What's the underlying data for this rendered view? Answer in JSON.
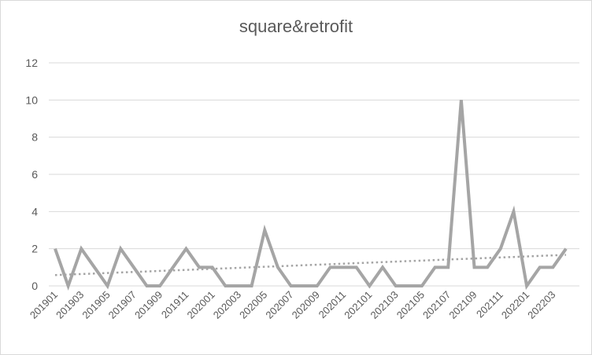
{
  "chart_data": {
    "type": "line",
    "title": "square&retrofit",
    "xlabel": "",
    "ylabel": "",
    "ylim": [
      0,
      12
    ],
    "yticks": [
      0,
      2,
      4,
      6,
      8,
      10,
      12
    ],
    "grid": true,
    "legend": "none",
    "x": [
      "201901",
      "201902",
      "201903",
      "201904",
      "201905",
      "201906",
      "201907",
      "201908",
      "201909",
      "201910",
      "201911",
      "201912",
      "202001",
      "202002",
      "202003",
      "202004",
      "202005",
      "202006",
      "202007",
      "202008",
      "202009",
      "202010",
      "202011",
      "202012",
      "202101",
      "202102",
      "202103",
      "202104",
      "202105",
      "202106",
      "202107",
      "202108",
      "202109",
      "202110",
      "202111",
      "202112",
      "202201",
      "202202",
      "202203",
      "202204"
    ],
    "x_tick_labels": [
      "201901",
      "201903",
      "201905",
      "201907",
      "201909",
      "201911",
      "202001",
      "202003",
      "202005",
      "202007",
      "202009",
      "202011",
      "202101",
      "202103",
      "202105",
      "202107",
      "202109",
      "202111",
      "202201",
      "202203"
    ],
    "series": [
      {
        "values": [
          2,
          0,
          2,
          1,
          0,
          2,
          1,
          0,
          0,
          1,
          2,
          1,
          1,
          0,
          0,
          0,
          3,
          1,
          0,
          0,
          0,
          1,
          1,
          1,
          0,
          1,
          0,
          0,
          0,
          1,
          1,
          10,
          1,
          1,
          2,
          4,
          0,
          1,
          1,
          2
        ],
        "color": "#a5a5a5"
      }
    ],
    "trendline": {
      "type": "linear",
      "style": "dotted",
      "color": "#a5a5a5"
    }
  }
}
